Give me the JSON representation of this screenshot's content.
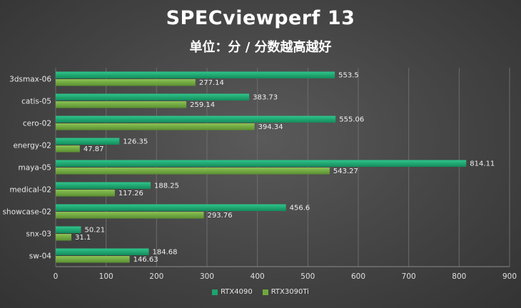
{
  "chart_data": {
    "type": "bar",
    "orientation": "horizontal",
    "title": "SPECviewperf 13",
    "subtitle": "单位：分 / 分数越高越好",
    "categories": [
      "3dsmax-06",
      "catis-05",
      "cero-02",
      "energy-02",
      "maya-05",
      "medical-02",
      "showcase-02",
      "snx-03",
      "sw-04"
    ],
    "series": [
      {
        "name": "RTX4090",
        "color": "#1fa36f",
        "values": [
          553.5,
          383.73,
          555.06,
          126.35,
          814.11,
          188.25,
          456.6,
          50.21,
          184.68
        ]
      },
      {
        "name": "RTX3090Ti",
        "color": "#6fa83c",
        "values": [
          277.14,
          259.14,
          394.34,
          47.87,
          543.27,
          117.26,
          293.76,
          31.1,
          146.63
        ]
      }
    ],
    "value_labels": [
      [
        "553.5",
        "383.73",
        "555.06",
        "126.35",
        "814.11",
        "188.25",
        "456.6",
        "50.21",
        "184.68"
      ],
      [
        "277.14",
        "259.14",
        "394.34",
        "47.87",
        "543.27",
        "117.26",
        "293.76",
        "31.1",
        "146.63"
      ]
    ],
    "xlim": [
      0,
      900
    ],
    "xticks": [
      "0",
      "100",
      "200",
      "300",
      "400",
      "500",
      "600",
      "700",
      "800",
      "900"
    ],
    "grid": true,
    "legend_position": "bottom"
  }
}
